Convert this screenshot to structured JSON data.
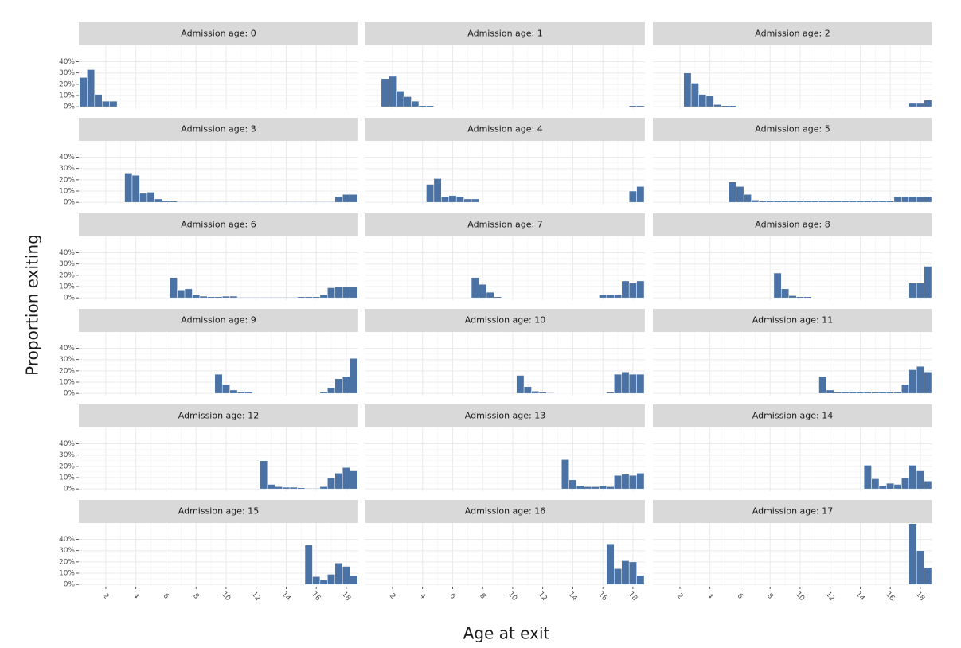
{
  "chart_data": {
    "type": "histogram",
    "x_label": "Age at exit",
    "y_label": "Proportion exiting",
    "color": "#4a72a4",
    "grid": true,
    "xlim": [
      0.2,
      18.8
    ],
    "ylim": [
      -2,
      54.5
    ],
    "xticks": [
      2,
      4,
      6,
      8,
      10,
      12,
      14,
      16,
      18
    ],
    "yticks": [
      {
        "value": 0,
        "label": "0%"
      },
      {
        "value": 10,
        "label": "10%"
      },
      {
        "value": 20,
        "label": "20%"
      },
      {
        "value": 30,
        "label": "30%"
      },
      {
        "value": 40,
        "label": "40%"
      }
    ],
    "panels": [
      {
        "title": "Admission age: 0",
        "x": [
          0.5,
          1,
          1.5,
          2,
          2.5,
          3,
          3.5,
          4,
          4.5,
          5,
          5.5,
          6,
          6.5,
          7,
          7.5,
          8,
          8.5,
          9,
          9.5,
          10,
          10.5,
          11,
          11.5,
          12,
          12.5,
          13,
          13.5,
          14,
          14.5,
          15,
          15.5,
          16,
          16.5,
          17,
          17.5,
          18,
          18.5
        ],
        "values": [
          26,
          33,
          11,
          5,
          5,
          0.3,
          0.3,
          0.3,
          0.3,
          0.3,
          0.3,
          0.3,
          0.3,
          0.3,
          0.3,
          0.3,
          0.3,
          0.3,
          0.3,
          0.3,
          0.3,
          0.3,
          0.3,
          0.3,
          0.3,
          0.3,
          0.3,
          0.3,
          0.3,
          0.3,
          0.3,
          0.3,
          0.3,
          0.3,
          0.3,
          0.3,
          0.3
        ]
      },
      {
        "title": "Admission age: 1",
        "x": [
          1.5,
          2,
          2.5,
          3,
          3.5,
          4,
          4.5,
          5,
          5.5,
          6,
          6.5,
          7,
          7.5,
          8,
          8.5,
          9,
          9.5,
          10,
          10.5,
          11,
          11.5,
          12,
          12.5,
          13,
          13.5,
          14,
          14.5,
          15,
          15.5,
          16,
          16.5,
          17,
          17.5,
          18,
          18.5
        ],
        "values": [
          25,
          27,
          14,
          9,
          5,
          1,
          1,
          0.3,
          0.3,
          0.3,
          0.3,
          0.3,
          0.3,
          0.3,
          0.3,
          0.3,
          0.3,
          0.3,
          0.3,
          0.3,
          0.3,
          0.3,
          0.3,
          0.3,
          0.3,
          0.3,
          0.3,
          0.3,
          0.3,
          0.3,
          0.3,
          0.3,
          0.3,
          1,
          1
        ]
      },
      {
        "title": "Admission age: 2",
        "x": [
          2.5,
          3,
          3.5,
          4,
          4.5,
          5,
          5.5,
          6,
          6.5,
          7,
          7.5,
          8,
          8.5,
          9,
          9.5,
          10,
          10.5,
          11,
          11.5,
          12,
          12.5,
          13,
          13.5,
          14,
          14.5,
          15,
          15.5,
          16,
          16.5,
          17,
          17.5,
          18,
          18.5
        ],
        "values": [
          30,
          21,
          11,
          10,
          2,
          1,
          1,
          0.3,
          0.3,
          0.3,
          0.3,
          0.3,
          0.3,
          0.3,
          0.3,
          0.3,
          0.3,
          0.3,
          0.3,
          0.3,
          0.3,
          0.3,
          0.3,
          0.3,
          0.3,
          0.3,
          0.3,
          0.3,
          0.3,
          0.3,
          3,
          3,
          6
        ]
      },
      {
        "title": "Admission age: 3",
        "x": [
          3.5,
          4,
          4.5,
          5,
          5.5,
          6,
          6.5,
          7,
          7.5,
          8,
          8.5,
          9,
          9.5,
          10,
          10.5,
          11,
          11.5,
          12,
          12.5,
          13,
          13.5,
          14,
          14.5,
          15,
          15.5,
          16,
          16.5,
          17,
          17.5,
          18,
          18.5
        ],
        "values": [
          26,
          24,
          8,
          9,
          3,
          1.5,
          1,
          0.5,
          0.5,
          0.5,
          0.5,
          0.5,
          0.5,
          0.5,
          0.5,
          0.5,
          0.5,
          0.5,
          0.5,
          0.5,
          0.5,
          0.5,
          0.5,
          0.5,
          0.5,
          0.5,
          0.5,
          0.5,
          5,
          7,
          7
        ]
      },
      {
        "title": "Admission age: 4",
        "x": [
          4.5,
          5,
          5.5,
          6,
          6.5,
          7,
          7.5,
          8,
          8.5,
          9,
          9.5,
          10,
          10.5,
          11,
          11.5,
          12,
          12.5,
          13,
          13.5,
          14,
          14.5,
          15,
          15.5,
          16,
          16.5,
          17,
          17.5,
          18,
          18.5
        ],
        "values": [
          16,
          21,
          5,
          6,
          5,
          3,
          3,
          0.3,
          0.3,
          0.3,
          0.3,
          0.3,
          0.3,
          0.3,
          0.3,
          0.3,
          0.3,
          0.3,
          0.3,
          0.3,
          0.3,
          0.3,
          0.3,
          0.3,
          0.3,
          0.3,
          0.3,
          10,
          14
        ]
      },
      {
        "title": "Admission age: 5",
        "x": [
          5.5,
          6,
          6.5,
          7,
          7.5,
          8,
          8.5,
          9,
          9.5,
          10,
          10.5,
          11,
          11.5,
          12,
          12.5,
          13,
          13.5,
          14,
          14.5,
          15,
          15.5,
          16,
          16.5,
          17,
          17.5,
          18,
          18.5
        ],
        "values": [
          18,
          14,
          7,
          2,
          1,
          1,
          1,
          1,
          1,
          1,
          1,
          1,
          1,
          1,
          1,
          1,
          1,
          1,
          1,
          1,
          1,
          1,
          5,
          5,
          5,
          5,
          5
        ]
      },
      {
        "title": "Admission age: 6",
        "x": [
          6.5,
          7,
          7.5,
          8,
          8.5,
          9,
          9.5,
          10,
          10.5,
          11,
          11.5,
          12,
          12.5,
          13,
          13.5,
          14,
          14.5,
          15,
          15.5,
          16,
          16.5,
          17,
          17.5,
          18,
          18.5
        ],
        "values": [
          18,
          7,
          8,
          3,
          1.5,
          1,
          1,
          1.5,
          1.5,
          0.5,
          0.5,
          0.5,
          0.5,
          0.5,
          0.5,
          0.5,
          0.5,
          1,
          1,
          1,
          3,
          9,
          10,
          10,
          10
        ]
      },
      {
        "title": "Admission age: 7",
        "x": [
          7.5,
          8,
          8.5,
          9,
          9.5,
          10,
          10.5,
          11,
          11.5,
          12,
          12.5,
          13,
          13.5,
          14,
          14.5,
          15,
          15.5,
          16,
          16.5,
          17,
          17.5,
          18,
          18.5
        ],
        "values": [
          18,
          12,
          5,
          1,
          0.3,
          0.3,
          0.3,
          0.3,
          0.3,
          0.3,
          0.3,
          0.3,
          0.3,
          0.3,
          0.3,
          0.3,
          0.3,
          3,
          3,
          3,
          15,
          13,
          15
        ]
      },
      {
        "title": "Admission age: 8",
        "x": [
          8.5,
          9,
          9.5,
          10,
          10.5,
          11,
          11.5,
          12,
          12.5,
          13,
          13.5,
          14,
          14.5,
          15,
          15.5,
          16,
          16.5,
          17,
          17.5,
          18,
          18.5
        ],
        "values": [
          22,
          8,
          2,
          1,
          1,
          0.3,
          0.3,
          0.3,
          0.3,
          0.3,
          0.3,
          0.3,
          0.3,
          0.3,
          0.3,
          0.3,
          0.3,
          0.3,
          13,
          13,
          28
        ]
      },
      {
        "title": "Admission age: 9",
        "x": [
          9.5,
          10,
          10.5,
          11,
          11.5,
          12,
          12.5,
          13,
          13.5,
          14,
          14.5,
          15,
          15.5,
          16,
          16.5,
          17,
          17.5,
          18,
          18.5
        ],
        "values": [
          17,
          8,
          3,
          1,
          1,
          0.3,
          0.3,
          0.3,
          0.3,
          0.3,
          0.3,
          0.3,
          0.3,
          0.3,
          1.5,
          5,
          13,
          15,
          31
        ]
      },
      {
        "title": "Admission age: 10",
        "x": [
          10.5,
          11,
          11.5,
          12,
          12.5,
          13,
          13.5,
          14,
          14.5,
          15,
          15.5,
          16,
          16.5,
          17,
          17.5,
          18,
          18.5
        ],
        "values": [
          16,
          6,
          2,
          1,
          0.5,
          0.3,
          0.3,
          0.3,
          0.3,
          0.3,
          0.3,
          0.3,
          1,
          17,
          19,
          17,
          17
        ]
      },
      {
        "title": "Admission age: 11",
        "x": [
          11.5,
          12,
          12.5,
          13,
          13.5,
          14,
          14.5,
          15,
          15.5,
          16,
          16.5,
          17,
          17.5,
          18,
          18.5
        ],
        "values": [
          15,
          3,
          1,
          1,
          1,
          1,
          1.5,
          1,
          1,
          1,
          1.5,
          8,
          21,
          24,
          19
        ]
      },
      {
        "title": "Admission age: 12",
        "x": [
          12.5,
          13,
          13.5,
          14,
          14.5,
          15,
          15.5,
          16,
          16.5,
          17,
          17.5,
          18,
          18.5
        ],
        "values": [
          25,
          4,
          2,
          1.5,
          1.5,
          1,
          0.5,
          0.5,
          2,
          10,
          14,
          19,
          16
        ]
      },
      {
        "title": "Admission age: 13",
        "x": [
          13.5,
          14,
          14.5,
          15,
          15.5,
          16,
          16.5,
          17,
          17.5,
          18,
          18.5
        ],
        "values": [
          26,
          8,
          3,
          2,
          2,
          3,
          2,
          12,
          13,
          12,
          14
        ]
      },
      {
        "title": "Admission age: 14",
        "x": [
          14.5,
          15,
          15.5,
          16,
          16.5,
          17,
          17.5,
          18,
          18.5
        ],
        "values": [
          21,
          9,
          3,
          5,
          4,
          10,
          21,
          16,
          7
        ]
      },
      {
        "title": "Admission age: 15",
        "x": [
          15.5,
          16,
          16.5,
          17,
          17.5,
          18,
          18.5
        ],
        "values": [
          35,
          7,
          4,
          9,
          19,
          16,
          8
        ]
      },
      {
        "title": "Admission age: 16",
        "x": [
          16.5,
          17,
          17.5,
          18,
          18.5
        ],
        "values": [
          36,
          14,
          21,
          20,
          8
        ]
      },
      {
        "title": "Admission age: 17",
        "x": [
          17.5,
          18,
          18.5
        ],
        "values": [
          54,
          30,
          15
        ]
      }
    ]
  }
}
